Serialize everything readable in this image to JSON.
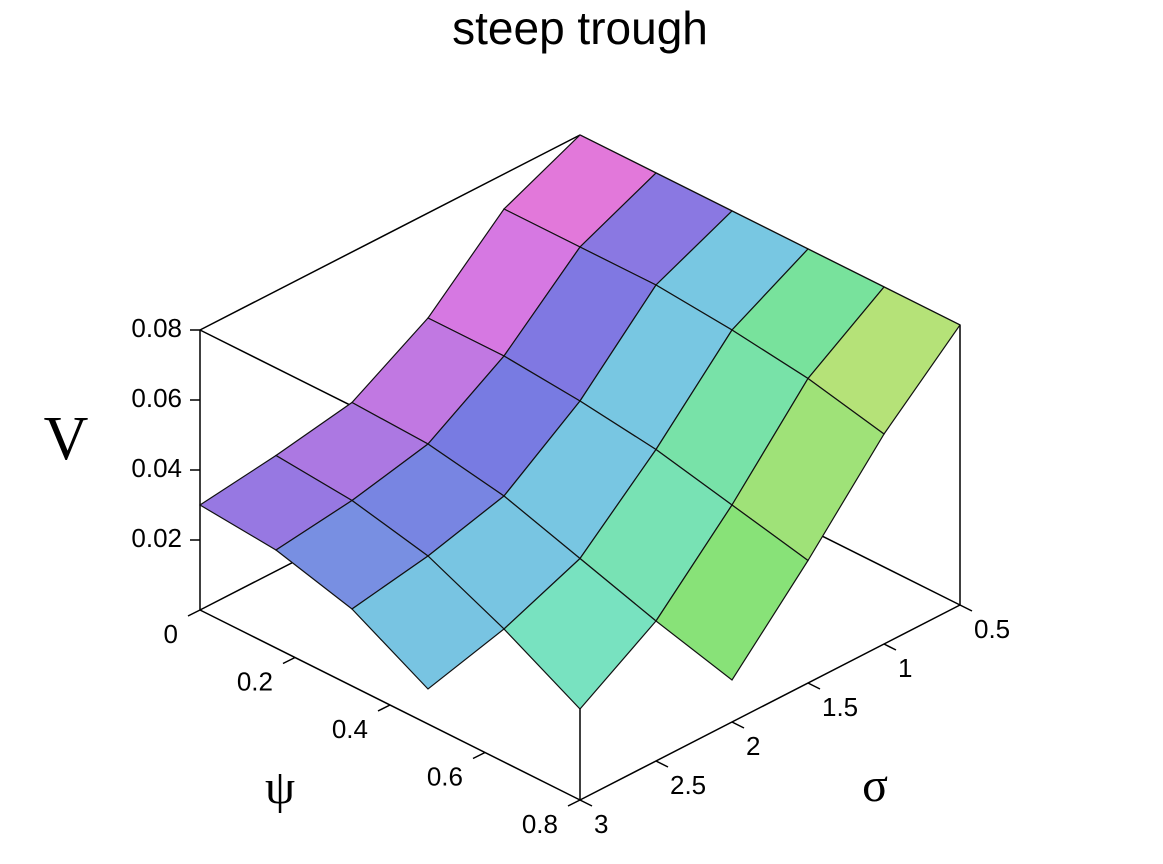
{
  "chart_data": {
    "type": "surface",
    "title": "steep trough",
    "xlabel": "ψ",
    "ylabel": "σ",
    "zlabel": "V",
    "x": [
      0,
      0.16,
      0.32,
      0.48,
      0.64,
      0.8
    ],
    "y": [
      0.5,
      1,
      1.5,
      2,
      2.5,
      3
    ],
    "z": [
      [
        0.08,
        0.08,
        0.08,
        0.08,
        0.08,
        0.08
      ],
      [
        0.07,
        0.07,
        0.07,
        0.068,
        0.065,
        0.06
      ],
      [
        0.05,
        0.05,
        0.048,
        0.045,
        0.04,
        0.035
      ],
      [
        0.037,
        0.036,
        0.032,
        0.025,
        0.018,
        0.012
      ],
      [
        0.033,
        0.031,
        0.026,
        0.016,
        0.004,
        null
      ],
      [
        0.03,
        0.028,
        0.022,
        0.01,
        null,
        null
      ]
    ],
    "xlim": [
      0,
      0.8
    ],
    "ylim": [
      0.5,
      3
    ],
    "zlim": [
      0,
      0.08
    ],
    "xticks": [
      0,
      0.2,
      0.4,
      0.6,
      0.8
    ],
    "yticks": [
      0.5,
      1,
      1.5,
      2,
      2.5,
      3
    ],
    "zticks": [
      0.02,
      0.04,
      0.06,
      0.08
    ]
  }
}
